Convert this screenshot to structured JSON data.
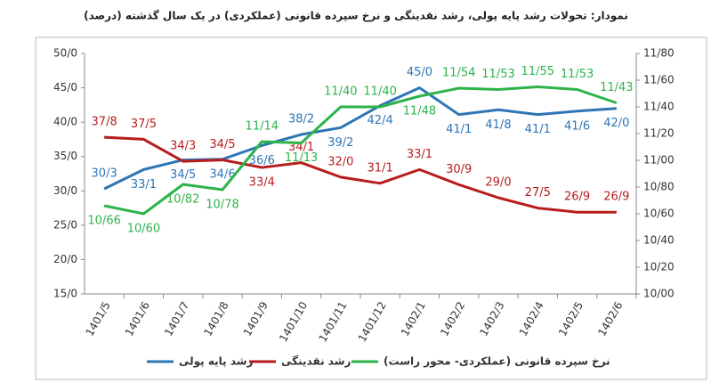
{
  "chart_data": {
    "type": "line",
    "title": "نمودار: تحولات رشد پایه پولی، رشد نقدینگی و نرخ سپرده قانونی (عملکردی) در یک سال گذشته (درصد)",
    "categories": [
      "1401/5",
      "1401/6",
      "1401/7",
      "1401/8",
      "1401/9",
      "1401/10",
      "1401/11",
      "1401/12",
      "1402/1",
      "1402/2",
      "1402/3",
      "1402/4",
      "1402/5",
      "1402/6"
    ],
    "series": [
      {
        "name": "رشد پایه پولی",
        "color": "#2e75b6",
        "values": [
          30.3,
          33.1,
          34.5,
          34.6,
          36.6,
          38.2,
          39.2,
          42.4,
          45.0,
          41.1,
          41.8,
          41.1,
          41.6,
          42.0
        ],
        "value_labels": [
          "30/3",
          "33/1",
          "34/5",
          "34/6",
          "36/6",
          "38/2",
          "39/2",
          "42/4",
          "45/0",
          "41/1",
          "41/8",
          "41/1",
          "41/6",
          "42/0"
        ]
      },
      {
        "name": "رشد نقدینگی",
        "color": "#b81d1d",
        "values": [
          37.8,
          37.5,
          34.3,
          34.5,
          33.4,
          34.1,
          32.0,
          31.1,
          33.1,
          30.9,
          29.0,
          27.5,
          26.9,
          26.9
        ],
        "value_labels": [
          "37/8",
          "37/5",
          "34/3",
          "34/5",
          "33/4",
          "34/1",
          "32/0",
          "31/1",
          "33/1",
          "30/9",
          "29/0",
          "27/5",
          "26/9",
          "26/9"
        ]
      },
      {
        "name": "نرخ سپرده قانونی (عملکردی- محور راست)",
        "color": "#2db34a",
        "axis": "y2",
        "values": [
          10.66,
          10.6,
          10.82,
          10.78,
          11.14,
          11.13,
          11.4,
          11.4,
          11.48,
          11.54,
          11.53,
          11.55,
          11.53,
          11.43
        ],
        "value_labels": [
          "10/66",
          "10/60",
          "10/82",
          "10/78",
          "11/14",
          "11/13",
          "11/40",
          "11/40",
          "11/48",
          "11/54",
          "11/53",
          "11/55",
          "11/53",
          "11/43"
        ]
      }
    ],
    "ylim": [
      15,
      50
    ],
    "yticks": [
      {
        "value": 15,
        "label": "15/0"
      },
      {
        "value": 20,
        "label": "20/0"
      },
      {
        "value": 25,
        "label": "25/0"
      },
      {
        "value": 30,
        "label": "30/0"
      },
      {
        "value": 35,
        "label": "35/0"
      },
      {
        "value": 40,
        "label": "40/0"
      },
      {
        "value": 45,
        "label": "45/0"
      },
      {
        "value": 50,
        "label": "50/0"
      }
    ],
    "y2lim": [
      10.0,
      11.8
    ],
    "y2ticks": [
      {
        "value": 10.0,
        "label": "10/00"
      },
      {
        "value": 10.2,
        "label": "10/20"
      },
      {
        "value": 10.4,
        "label": "10/40"
      },
      {
        "value": 10.6,
        "label": "10/60"
      },
      {
        "value": 10.8,
        "label": "10/80"
      },
      {
        "value": 11.0,
        "label": "11/00"
      },
      {
        "value": 11.2,
        "label": "11/20"
      },
      {
        "value": 11.4,
        "label": "11/40"
      },
      {
        "value": 11.6,
        "label": "11/60"
      },
      {
        "value": 11.8,
        "label": "11/80"
      }
    ],
    "grid": false
  }
}
